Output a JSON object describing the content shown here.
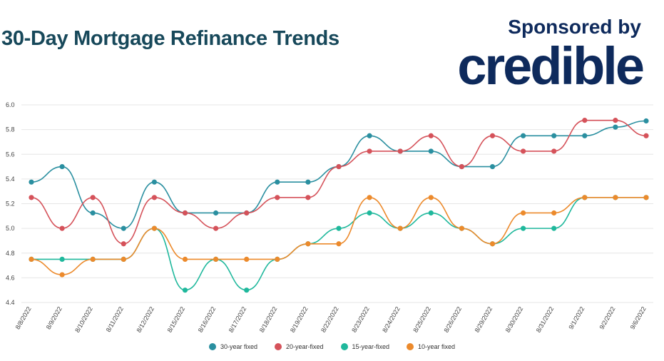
{
  "header": {
    "title": "30-Day Mortgage Refinance Trends",
    "sponsor_label": "Sponsored by",
    "brand": "credible"
  },
  "chart_data": {
    "type": "line",
    "title": "30-Day Mortgage Refinance Trends",
    "xlabel": "",
    "ylabel": "",
    "ylim": [
      4.4,
      6.0
    ],
    "yticks": [
      "4.4",
      "4.6",
      "4.8",
      "5.0",
      "5.2",
      "5.4",
      "5.6",
      "5.8",
      "6.0"
    ],
    "grid": true,
    "legend_position": "bottom",
    "categories": [
      "8/8/2022",
      "8/9/2022",
      "8/10/2022",
      "8/11/2022",
      "8/12/2022",
      "8/15/2022",
      "8/16/2022",
      "8/17/2022",
      "8/18/2022",
      "8/19/2022",
      "8/22/2022",
      "8/23/2022",
      "8/24/2022",
      "8/25/2022",
      "8/26/2022",
      "8/29/2022",
      "8/30/2022",
      "8/31/2022",
      "9/1/2022",
      "9/2/2022",
      "9/6/2022"
    ],
    "series": [
      {
        "name": "30-year fixed",
        "color": "#2a8fa0",
        "values": [
          5.375,
          5.5,
          5.125,
          5.0,
          5.375,
          5.125,
          5.125,
          5.125,
          5.375,
          5.375,
          5.5,
          5.75,
          5.625,
          5.625,
          5.5,
          5.5,
          5.75,
          5.75,
          5.75,
          5.82,
          5.87
        ]
      },
      {
        "name": "20-year-fixed",
        "color": "#d5525a",
        "values": [
          5.25,
          5.0,
          5.25,
          4.875,
          5.25,
          5.125,
          5.0,
          5.125,
          5.25,
          5.25,
          5.5,
          5.625,
          5.625,
          5.75,
          5.5,
          5.75,
          5.625,
          5.625,
          5.875,
          5.875,
          5.75
        ]
      },
      {
        "name": "15-year-fixed",
        "color": "#1fb89c",
        "values": [
          4.75,
          4.75,
          4.75,
          4.75,
          5.0,
          4.5,
          4.75,
          4.5,
          4.75,
          4.875,
          5.0,
          5.125,
          5.0,
          5.125,
          5.0,
          4.875,
          5.0,
          5.0,
          5.25,
          5.25,
          5.25
        ]
      },
      {
        "name": "10-year fixed",
        "color": "#ec8a2c",
        "values": [
          4.75,
          4.625,
          4.75,
          4.75,
          5.0,
          4.75,
          4.75,
          4.75,
          4.75,
          4.875,
          4.875,
          5.25,
          5.0,
          5.25,
          5.0,
          4.875,
          5.125,
          5.125,
          5.25,
          5.25,
          5.25
        ]
      }
    ]
  }
}
